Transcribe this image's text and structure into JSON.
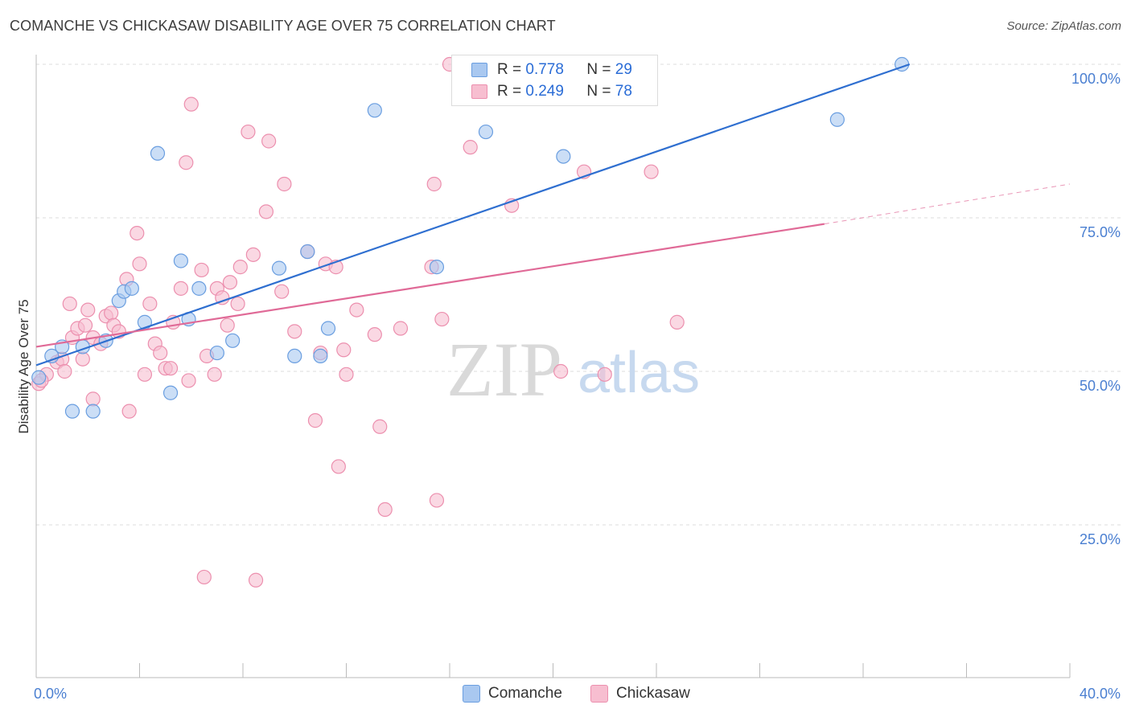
{
  "title": "COMANCHE VS CHICKASAW DISABILITY AGE OVER 75 CORRELATION CHART",
  "source": "Source: ZipAtlas.com",
  "watermark": {
    "zip": "ZIP",
    "atlas": "atlas"
  },
  "legend_top": {
    "rows": [
      {
        "series": "Comanche",
        "r_label": "R =",
        "r_value": "0.778",
        "n_label": "N =",
        "n_value": "29"
      },
      {
        "series": "Chickasaw",
        "r_label": "R =",
        "r_value": "0.249",
        "n_label": "N =",
        "n_value": "78"
      }
    ]
  },
  "legend_bottom": [
    "Comanche",
    "Chickasaw"
  ],
  "colors": {
    "comanche_fill": "#a9c8f0",
    "comanche_stroke": "#6a9ee0",
    "comanche_line": "#2f6fd0",
    "chickasaw_fill": "#f7bed0",
    "chickasaw_stroke": "#ec8fae",
    "chickasaw_line": "#e06a97",
    "tick_text": "#4a7fd1",
    "grid": "#dddddd"
  },
  "chart_data": {
    "type": "scatter",
    "title": "COMANCHE VS CHICKASAW DISABILITY AGE OVER 75 CORRELATION CHART",
    "xlabel": "",
    "ylabel": "Disability Age Over 75",
    "xlim": [
      0,
      40
    ],
    "ylim": [
      0,
      105
    ],
    "x_tick_labels": [
      "0.0%",
      "40.0%"
    ],
    "y_ticks": [
      25,
      50,
      75,
      100
    ],
    "y_tick_labels": [
      "25.0%",
      "50.0%",
      "75.0%",
      "100.0%"
    ],
    "grid": "horizontal dashed",
    "legend_position": "top-center",
    "series": [
      {
        "name": "Comanche",
        "r": 0.778,
        "n": 29,
        "trend": {
          "x0": 0,
          "y0": 51.0,
          "x1": 33.8,
          "y1": 100.0
        },
        "points": [
          [
            0.1,
            49.0
          ],
          [
            0.6,
            52.5
          ],
          [
            1.0,
            54.0
          ],
          [
            1.4,
            43.5
          ],
          [
            1.8,
            54.0
          ],
          [
            2.2,
            43.5
          ],
          [
            2.7,
            55.0
          ],
          [
            3.2,
            61.5
          ],
          [
            3.4,
            63.0
          ],
          [
            3.7,
            63.5
          ],
          [
            4.2,
            58.0
          ],
          [
            4.7,
            85.5
          ],
          [
            5.2,
            46.5
          ],
          [
            5.6,
            68.0
          ],
          [
            5.9,
            58.5
          ],
          [
            6.3,
            63.5
          ],
          [
            7.0,
            53.0
          ],
          [
            7.6,
            55.0
          ],
          [
            9.4,
            66.8
          ],
          [
            10.0,
            52.5
          ],
          [
            10.5,
            69.5
          ],
          [
            11.0,
            52.5
          ],
          [
            11.3,
            57.0
          ],
          [
            13.1,
            92.5
          ],
          [
            15.5,
            67.0
          ],
          [
            17.4,
            89.0
          ],
          [
            20.4,
            85.0
          ],
          [
            31.0,
            91.0
          ],
          [
            33.5,
            100.0
          ]
        ]
      },
      {
        "name": "Chickasaw",
        "r": 0.249,
        "n": 78,
        "trend": {
          "x0": 0,
          "y0": 54.0,
          "x1": 30.5,
          "y1": 74.0,
          "dashed_to_x": 40,
          "dashed_to_y": 80.5
        },
        "points": [
          [
            0.1,
            48.0
          ],
          [
            0.4,
            49.5
          ],
          [
            0.8,
            51.5
          ],
          [
            1.0,
            52.0
          ],
          [
            1.1,
            50.0
          ],
          [
            1.3,
            61.0
          ],
          [
            1.4,
            55.5
          ],
          [
            1.6,
            57.0
          ],
          [
            1.8,
            52.0
          ],
          [
            1.9,
            57.5
          ],
          [
            2.2,
            45.5
          ],
          [
            2.2,
            55.5
          ],
          [
            2.5,
            54.5
          ],
          [
            2.7,
            59.0
          ],
          [
            2.9,
            59.5
          ],
          [
            3.0,
            57.5
          ],
          [
            3.2,
            56.5
          ],
          [
            3.5,
            65.0
          ],
          [
            3.6,
            43.5
          ],
          [
            3.9,
            72.5
          ],
          [
            4.0,
            67.5
          ],
          [
            4.2,
            49.5
          ],
          [
            4.4,
            61.0
          ],
          [
            4.6,
            54.5
          ],
          [
            4.8,
            53.0
          ],
          [
            5.0,
            50.5
          ],
          [
            5.2,
            50.5
          ],
          [
            5.3,
            58.0
          ],
          [
            5.6,
            63.5
          ],
          [
            5.8,
            84.0
          ],
          [
            5.9,
            48.5
          ],
          [
            6.0,
            93.5
          ],
          [
            6.4,
            66.5
          ],
          [
            6.5,
            16.5
          ],
          [
            6.6,
            52.5
          ],
          [
            6.9,
            49.5
          ],
          [
            7.0,
            63.5
          ],
          [
            7.2,
            62.0
          ],
          [
            7.4,
            57.5
          ],
          [
            7.5,
            64.5
          ],
          [
            7.8,
            61.0
          ],
          [
            7.9,
            67.0
          ],
          [
            8.2,
            89.0
          ],
          [
            8.4,
            69.0
          ],
          [
            8.5,
            16.0
          ],
          [
            8.9,
            76.0
          ],
          [
            9.0,
            87.5
          ],
          [
            9.5,
            63.0
          ],
          [
            9.6,
            80.5
          ],
          [
            10.0,
            56.5
          ],
          [
            10.5,
            69.5
          ],
          [
            10.8,
            42.0
          ],
          [
            11.0,
            53.0
          ],
          [
            11.2,
            67.5
          ],
          [
            11.6,
            67.0
          ],
          [
            11.7,
            34.5
          ],
          [
            11.9,
            53.5
          ],
          [
            12.0,
            49.5
          ],
          [
            12.4,
            60.0
          ],
          [
            13.1,
            56.0
          ],
          [
            13.3,
            41.0
          ],
          [
            13.5,
            27.5
          ],
          [
            14.1,
            57.0
          ],
          [
            15.3,
            67.0
          ],
          [
            15.4,
            80.5
          ],
          [
            15.5,
            29.0
          ],
          [
            15.7,
            58.5
          ],
          [
            16.0,
            100.0
          ],
          [
            16.8,
            86.5
          ],
          [
            18.0,
            100.0
          ],
          [
            18.4,
            77.0
          ],
          [
            20.3,
            50.0
          ],
          [
            21.2,
            82.5
          ],
          [
            22.0,
            49.5
          ],
          [
            23.8,
            82.5
          ],
          [
            24.8,
            58.0
          ],
          [
            0.2,
            48.5
          ],
          [
            2.0,
            60.0
          ]
        ]
      }
    ]
  }
}
